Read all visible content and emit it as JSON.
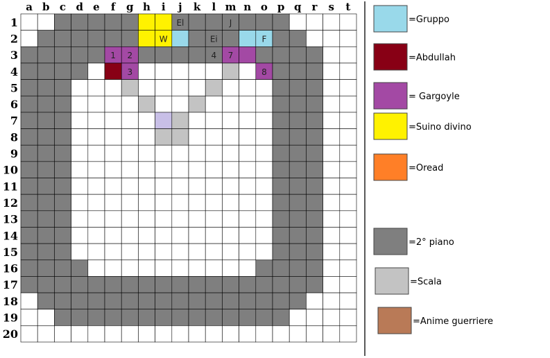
{
  "colors": {
    "white": "#ffffff",
    "floor2": "#7f7f7f",
    "stairs": "#c3c3c3",
    "group": "#99d9ea",
    "abdullah": "#880015",
    "gargoyle": "#a349a4",
    "pig": "#fff200",
    "oread": "#ff7f27",
    "souls": "#b97a57",
    "lavender": "#c8bfe7",
    "gridline": "#000000"
  },
  "columns": [
    "a",
    "b",
    "c",
    "d",
    "e",
    "f",
    "g",
    "h",
    "i",
    "j",
    "k",
    "l",
    "m",
    "n",
    "o",
    "p",
    "q",
    "r",
    "s",
    "t"
  ],
  "rows": [
    "1",
    "2",
    "3",
    "4",
    "5",
    "6",
    "7",
    "8",
    "9",
    "10",
    "11",
    "12",
    "13",
    "14",
    "15",
    "16",
    "17",
    "18",
    "19",
    "20"
  ],
  "grid": [
    "WWGGGGGYYGGGGGGGWWWW",
    "WGGGGGGYYCGGGCCGGWWW",
    "GGGGGPPGGGGGPPGGGGWW",
    "GGGGWAPWWWWWSWPGGGWW",
    "GGGWWWSWWWWSWWWGGGWW",
    "GGGWWWWSWWSWWWWGGGWW",
    "GGGWWWWWVSWWWWWGGGWW",
    "GGGWWWWWSSWWWWWGGGWW",
    "GGGWWWWWWWWWWWWGGGWW",
    "GGGWWWWWWWWWWWWGGGWW",
    "GGGWWWWWWWWWWWWGGGWW",
    "GGGWWWWWWWWWWWWGGGWW",
    "GGGWWWWWWWWWWWWGGGWW",
    "GGGWWWWWWWWWWWWGGGWW",
    "GGGWWWWWWWWWWWWGGGWW",
    "GGGGWWWWWWWWWWGGGGWW",
    "GGGGGGGGGGGGGGGGGGWW",
    "WGGGGGGGGGGGGGGGGWWW",
    "WWGGGGGGGGGGGGGGWWWW",
    "WWWWWWWWWWWWWWWWWWWW"
  ],
  "tokens": [
    {
      "label": "El",
      "col": 9,
      "row": 0,
      "color": "group"
    },
    {
      "label": "J",
      "col": 12,
      "row": 0,
      "color": "group"
    },
    {
      "label": "W",
      "col": 8,
      "row": 1,
      "color": "group"
    },
    {
      "label": "Ei",
      "col": 11,
      "row": 1,
      "color": "group"
    },
    {
      "label": "F",
      "col": 14,
      "row": 1,
      "color": "group"
    },
    {
      "label": "1",
      "col": 5,
      "row": 2,
      "color": "gargoyle"
    },
    {
      "label": "2",
      "col": 6,
      "row": 2,
      "color": "gargoyle"
    },
    {
      "label": "4",
      "col": 11,
      "row": 2,
      "color": "gargoyle"
    },
    {
      "label": "7",
      "col": 12,
      "row": 2,
      "color": "gargoyle"
    },
    {
      "label": "3",
      "col": 6,
      "row": 3,
      "color": "gargoyle"
    },
    {
      "label": "8",
      "col": 14,
      "row": 3,
      "color": "gargoyle"
    }
  ],
  "legend": [
    {
      "name": "legend-gruppo",
      "color": "group",
      "label": "=Gruppo"
    },
    {
      "name": "legend-abdullah",
      "color": "abdullah",
      "label": "=Abdullah"
    },
    {
      "name": "legend-gargoyle",
      "color": "gargoyle",
      "label": "= Gargoyle"
    },
    {
      "name": "legend-suino-divino",
      "color": "pig",
      "label": "=Suino divino"
    },
    {
      "name": "legend-oread",
      "color": "oread",
      "label": "=Oread"
    },
    {
      "name": "legend-2-piano",
      "color": "floor2",
      "label": "=2° piano"
    },
    {
      "name": "legend-scala",
      "color": "stairs",
      "label": "=Scala"
    },
    {
      "name": "legend-anime-guerriere",
      "color": "souls",
      "label": "=Anime guerriere"
    }
  ]
}
